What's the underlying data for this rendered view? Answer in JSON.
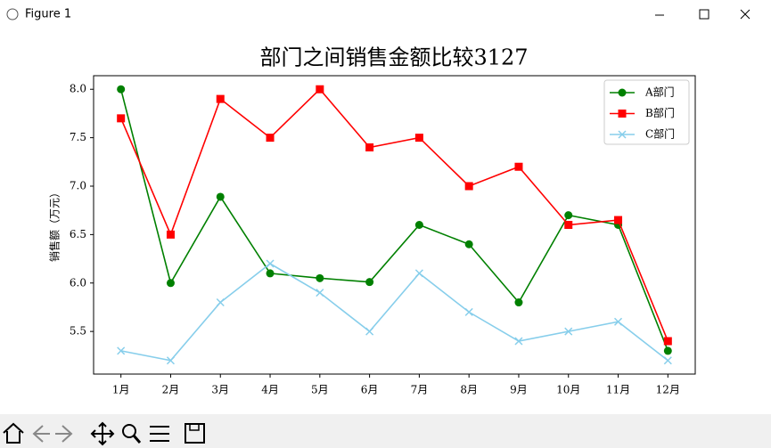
{
  "window_title": "Figure 1",
  "chart_data": {
    "type": "line",
    "title": "部门之间销售金额比较3127",
    "y_label": "销售额（万元）",
    "categories": [
      "1月",
      "2月",
      "3月",
      "4月",
      "5月",
      "6月",
      "7月",
      "8月",
      "9月",
      "10月",
      "11月",
      "12月"
    ],
    "series": [
      {
        "name": "A部门",
        "color": "#008000",
        "marker": "circle",
        "values": [
          8.0,
          6.0,
          6.89,
          6.1,
          6.05,
          6.01,
          6.6,
          6.4,
          5.8,
          6.7,
          6.6,
          5.3
        ]
      },
      {
        "name": "B部门",
        "color": "#ff0000",
        "marker": "square",
        "values": [
          7.7,
          6.5,
          7.9,
          7.5,
          8.0,
          7.4,
          7.5,
          7.0,
          7.2,
          6.6,
          6.65,
          5.4
        ]
      },
      {
        "name": "C部门",
        "color": "#87ceeb",
        "marker": "x",
        "values": [
          5.3,
          5.2,
          5.8,
          6.2,
          5.9,
          5.5,
          6.1,
          5.7,
          5.4,
          5.5,
          5.6,
          5.2
        ]
      }
    ],
    "ylim": [
      5.06,
      8.14
    ],
    "yticks": [
      {
        "value": 5.5,
        "label": "5.5"
      },
      {
        "value": 6,
        "label": "6.0"
      },
      {
        "value": 6.5,
        "label": "6.5"
      },
      {
        "value": 7,
        "label": "7.0"
      },
      {
        "value": 7.5,
        "label": "7.5"
      },
      {
        "value": 8,
        "label": "8.0"
      }
    ],
    "legend": "upper right",
    "grid": false
  }
}
